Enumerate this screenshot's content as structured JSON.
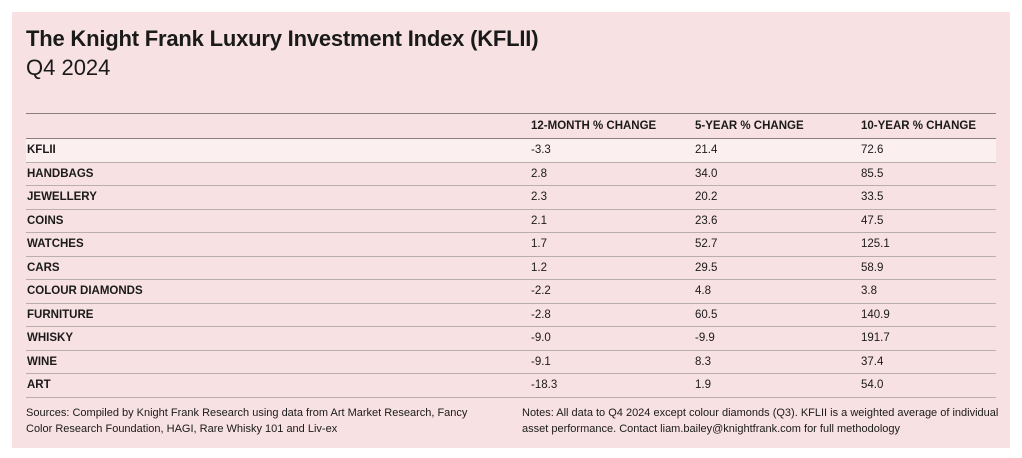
{
  "title": "The Knight Frank Luxury Investment Index (KFLII)",
  "subtitle": "Q4 2024",
  "chart_data": {
    "type": "table",
    "title": "The Knight Frank Luxury Investment Index (KFLII)",
    "subtitle": "Q4 2024",
    "columns": [
      "",
      "12-MONTH % CHANGE",
      "5-YEAR % CHANGE",
      "10-YEAR % CHANGE"
    ],
    "rows": [
      {
        "asset": "KFLII",
        "m12": "-3.3",
        "y5": "21.4",
        "y10": "72.6"
      },
      {
        "asset": "HANDBAGS",
        "m12": "2.8",
        "y5": "34.0",
        "y10": "85.5"
      },
      {
        "asset": "JEWELLERY",
        "m12": "2.3",
        "y5": "20.2",
        "y10": "33.5"
      },
      {
        "asset": "COINS",
        "m12": "2.1",
        "y5": "23.6",
        "y10": "47.5"
      },
      {
        "asset": "WATCHES",
        "m12": "1.7",
        "y5": "52.7",
        "y10": "125.1"
      },
      {
        "asset": "CARS",
        "m12": "1.2",
        "y5": "29.5",
        "y10": "58.9"
      },
      {
        "asset": "COLOUR DIAMONDS",
        "m12": "-2.2",
        "y5": "4.8",
        "y10": "3.8"
      },
      {
        "asset": "FURNITURE",
        "m12": "-2.8",
        "y5": "60.5",
        "y10": "140.9"
      },
      {
        "asset": "WHISKY",
        "m12": "-9.0",
        "y5": "-9.9",
        "y10": "191.7"
      },
      {
        "asset": "WINE",
        "m12": "-9.1",
        "y5": "8.3",
        "y10": "37.4"
      },
      {
        "asset": "ART",
        "m12": "-18.3",
        "y5": "1.9",
        "y10": "54.0"
      }
    ]
  },
  "sources": "Sources: Compiled by Knight Frank Research using data from Art Market Research, Fancy Color Research Foundation, HAGI, Rare Whisky 101 and Liv-ex",
  "notes": "Notes: All data to Q4 2024 except colour diamonds (Q3). KFLII is a weighted average of individual asset performance. Contact liam.bailey@knightfrank.com for full methodology",
  "colors": {
    "background": "#f8e1e2",
    "highlight_row": "#fcefef",
    "rule": "#8a7e7f"
  }
}
